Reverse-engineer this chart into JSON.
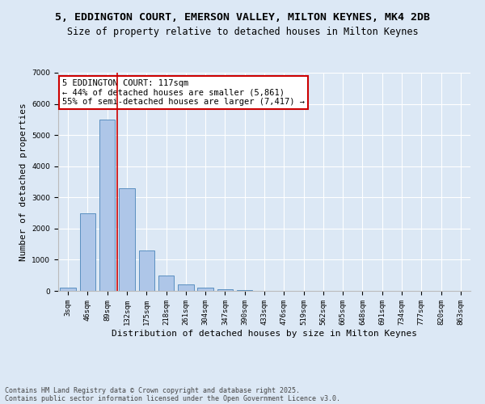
{
  "title_line1": "5, EDDINGTON COURT, EMERSON VALLEY, MILTON KEYNES, MK4 2DB",
  "title_line2": "Size of property relative to detached houses in Milton Keynes",
  "xlabel": "Distribution of detached houses by size in Milton Keynes",
  "ylabel": "Number of detached properties",
  "categories": [
    "3sqm",
    "46sqm",
    "89sqm",
    "132sqm",
    "175sqm",
    "218sqm",
    "261sqm",
    "304sqm",
    "347sqm",
    "390sqm",
    "433sqm",
    "476sqm",
    "519sqm",
    "562sqm",
    "605sqm",
    "648sqm",
    "691sqm",
    "734sqm",
    "777sqm",
    "820sqm",
    "863sqm"
  ],
  "values": [
    100,
    2500,
    5500,
    3300,
    1300,
    480,
    220,
    100,
    60,
    30,
    0,
    0,
    0,
    0,
    0,
    0,
    0,
    0,
    0,
    0,
    0
  ],
  "bar_color": "#aec6e8",
  "bar_edge_color": "#5a8fc0",
  "ylim": [
    0,
    7000
  ],
  "yticks": [
    0,
    1000,
    2000,
    3000,
    4000,
    5000,
    6000,
    7000
  ],
  "vline_x": 2.5,
  "vline_color": "#cc0000",
  "annotation_text": "5 EDDINGTON COURT: 117sqm\n← 44% of detached houses are smaller (5,861)\n55% of semi-detached houses are larger (7,417) →",
  "annotation_box_facecolor": "#ffffff",
  "annotation_box_edgecolor": "#cc0000",
  "footer_line1": "Contains HM Land Registry data © Crown copyright and database right 2025.",
  "footer_line2": "Contains public sector information licensed under the Open Government Licence v3.0.",
  "bg_color": "#dce8f5",
  "plot_bg_color": "#dce8f5",
  "grid_color": "#ffffff",
  "title1_fontsize": 9.5,
  "title2_fontsize": 8.5,
  "axis_label_fontsize": 8,
  "tick_fontsize": 6.5,
  "annotation_fontsize": 7.5,
  "footer_fontsize": 6
}
